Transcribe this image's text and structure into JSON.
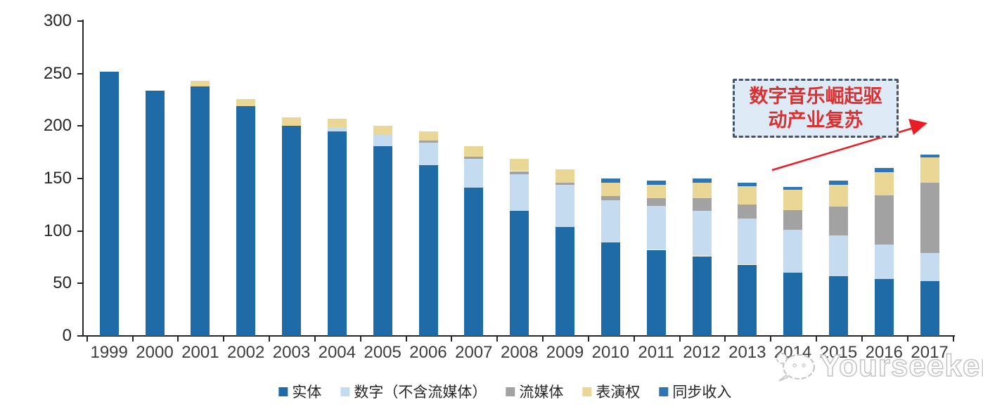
{
  "chart_data": {
    "type": "bar",
    "stacked": true,
    "title": "",
    "categories": [
      "1999",
      "2000",
      "2001",
      "2002",
      "2003",
      "2004",
      "2005",
      "2006",
      "2007",
      "2008",
      "2009",
      "2010",
      "2011",
      "2012",
      "2013",
      "2014",
      "2015",
      "2016",
      "2017"
    ],
    "series": [
      {
        "name": "实体",
        "color": "#1F6BA8",
        "values": [
          252,
          234,
          238,
          219,
          200,
          195,
          181,
          163,
          141,
          119,
          104,
          89,
          82,
          76,
          68,
          60,
          57,
          54,
          52
        ]
      },
      {
        "name": "数字（不含流媒体）",
        "color": "#C5DCF0",
        "values": [
          0,
          0,
          0,
          0,
          0,
          4,
          11,
          21,
          28,
          35,
          40,
          40,
          42,
          43,
          44,
          41,
          39,
          33,
          27
        ]
      },
      {
        "name": "流媒体",
        "color": "#A2A2A2",
        "values": [
          0,
          0,
          0,
          0,
          0,
          0,
          0,
          2,
          2,
          3,
          2,
          4,
          7,
          12,
          13,
          19,
          27,
          47,
          67
        ]
      },
      {
        "name": "表演权",
        "color": "#EBD795",
        "values": [
          0,
          0,
          5,
          7,
          8,
          8,
          8,
          9,
          10,
          12,
          13,
          13,
          13,
          15,
          18,
          19,
          21,
          22,
          24
        ]
      },
      {
        "name": "同步收入",
        "color": "#2E75B6",
        "values": [
          0,
          0,
          0,
          0,
          0,
          0,
          0,
          0,
          0,
          0,
          0,
          4,
          4,
          4,
          3,
          3,
          4,
          4,
          3
        ]
      }
    ],
    "ylim": [
      0,
      300
    ],
    "yticks": [
      0,
      50,
      100,
      150,
      200,
      250,
      300
    ],
    "grid": false,
    "legend_position": "bottom"
  },
  "annotation": {
    "line1": "数字音乐崛起驱",
    "line2": "动产业复苏",
    "arrow_color": "#EC1C24",
    "box_fill": "#DEEBF7",
    "box_border": "#44546A",
    "text_color": "#D93030"
  },
  "watermark": {
    "text": "Yourseeker"
  }
}
